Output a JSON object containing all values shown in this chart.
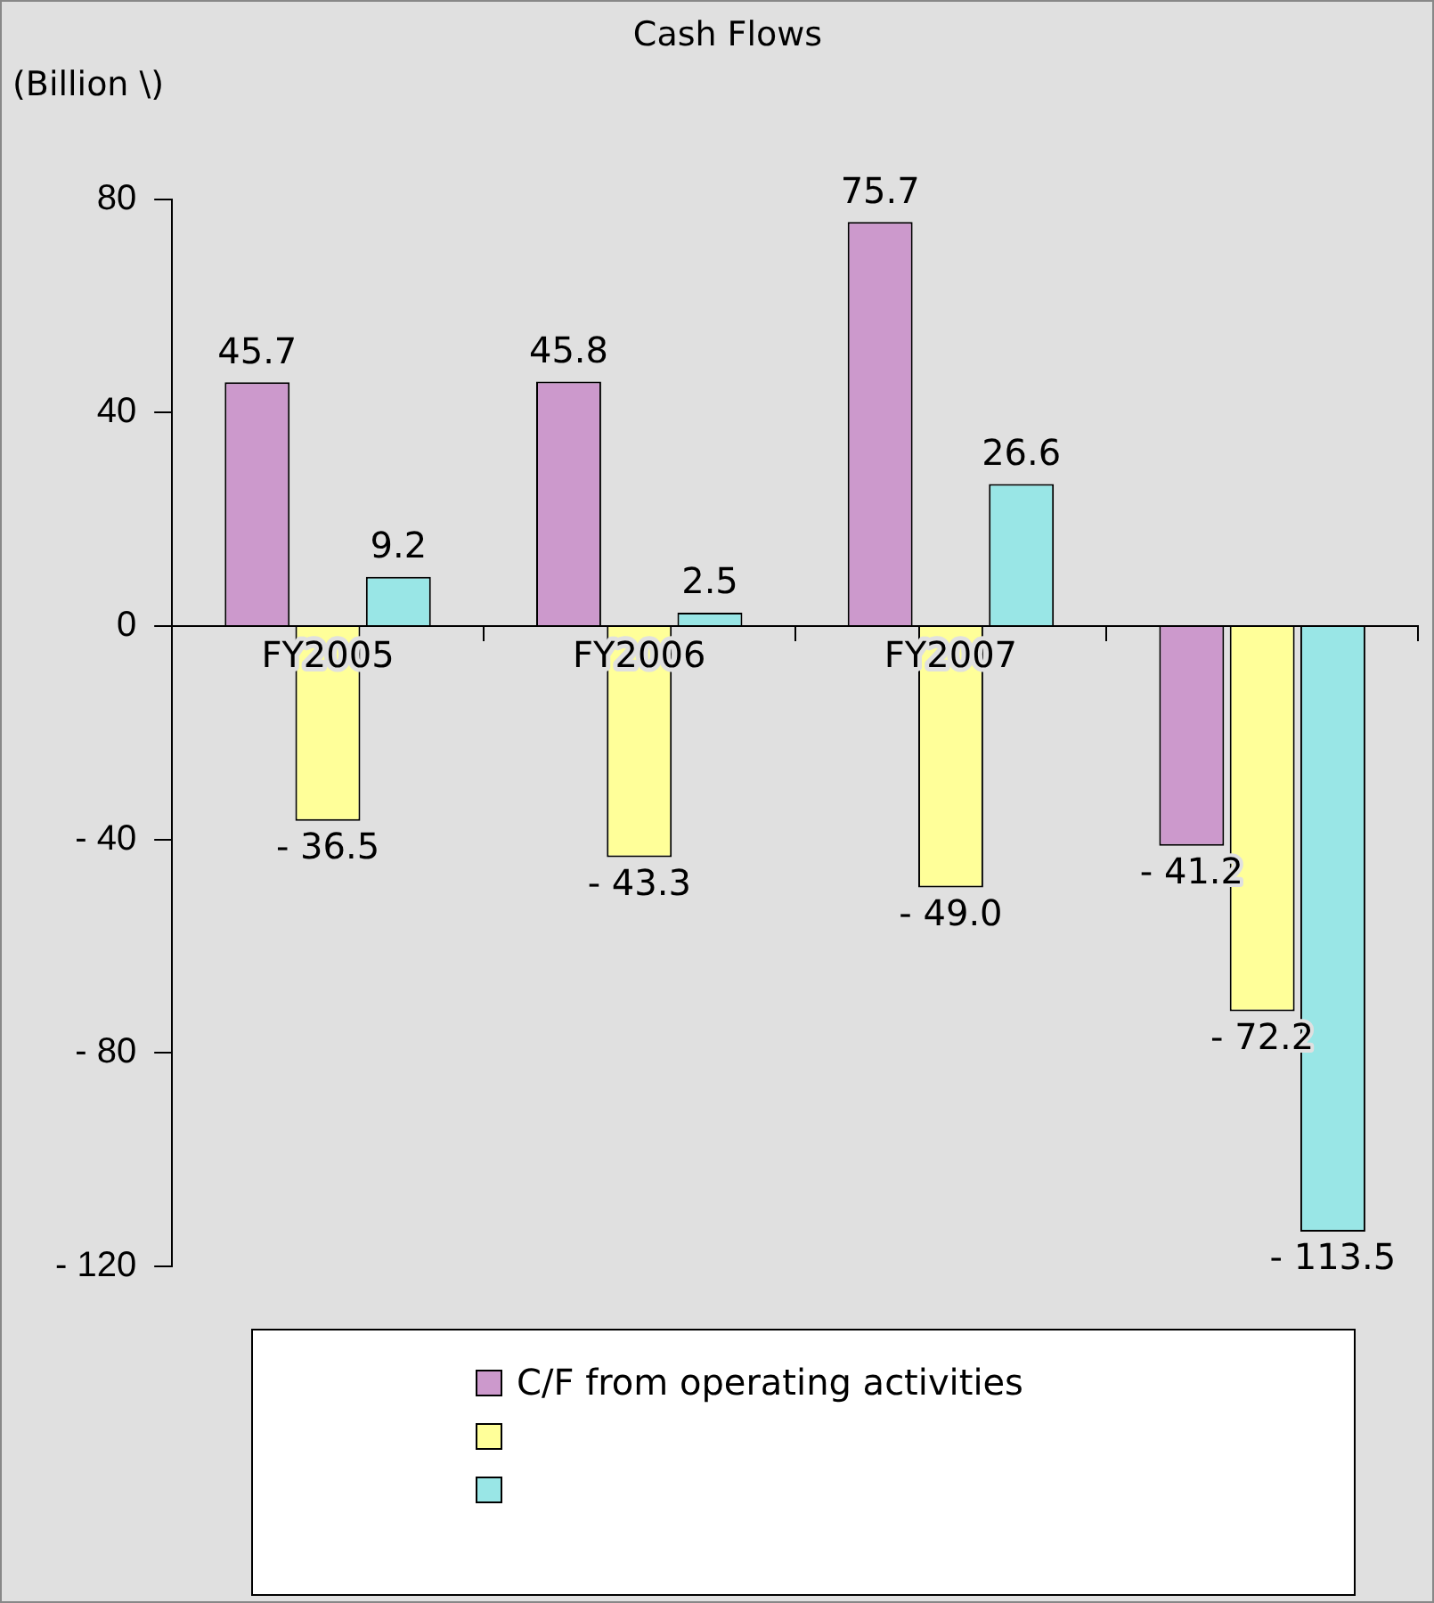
{
  "chart_data": {
    "type": "bar",
    "title": "Cash Flows",
    "ylabel": "(Billion \\)",
    "categories": [
      "FY2005",
      "FY2006",
      "FY2007",
      null
    ],
    "series": [
      {
        "name": "C/F from operating activities",
        "color": "#cc99cc",
        "values": [
          45.7,
          45.8,
          75.7,
          -41.2
        ],
        "value_labels": [
          "45.7",
          "45.8",
          "75.7",
          "- 41.2"
        ]
      },
      {
        "color": "#ffff99",
        "values": [
          -36.5,
          -43.3,
          -49.0,
          -72.2
        ],
        "value_labels": [
          "- 36.5",
          "- 43.3",
          "- 49.0",
          "- 72.2"
        ]
      },
      {
        "color": "#99e6e6",
        "values": [
          9.2,
          2.5,
          26.6,
          -113.5
        ],
        "value_labels": [
          "9.2",
          "2.5",
          "26.6",
          "- 113.5"
        ]
      }
    ],
    "ylim": [
      -120,
      80
    ],
    "yticks": [
      {
        "value": -120,
        "label": "- 120"
      },
      {
        "value": -80,
        "label": "- 80"
      },
      {
        "value": -40,
        "label": "- 40"
      },
      0,
      40,
      80
    ],
    "grid": false,
    "legend": "bottom"
  }
}
